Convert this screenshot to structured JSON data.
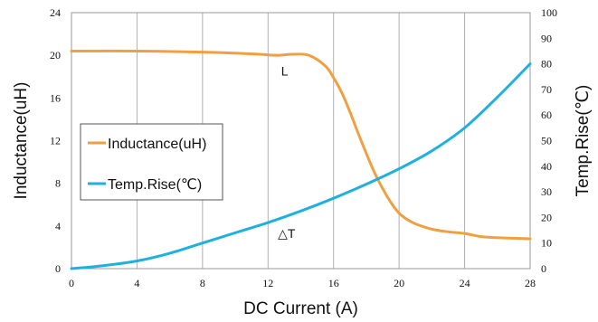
{
  "chart_data": {
    "type": "line",
    "title": "",
    "xlabel": "DC Current (A)",
    "ylabel": "Inductance(uH)",
    "y2label": "Temp.Rise(℃)",
    "xlim": [
      0,
      28
    ],
    "ylim": [
      0,
      24
    ],
    "y2lim": [
      0,
      100
    ],
    "x_ticks": [
      "0",
      "4",
      "8",
      "12",
      "16",
      "20",
      "24",
      "28"
    ],
    "y_ticks": [
      "0",
      "4",
      "8",
      "12",
      "16",
      "20",
      "24"
    ],
    "y2_ticks": [
      "0",
      "10",
      "20",
      "30",
      "40",
      "50",
      "60",
      "70",
      "80",
      "90",
      "100"
    ],
    "grid": true,
    "grid_axis": "x",
    "legend_position": "center-left",
    "series": [
      {
        "name": "Inductance(uH)",
        "axis": "left",
        "color": "#f0a040",
        "x": [
          0,
          4,
          8,
          10,
          11.5,
          12.5,
          13.5,
          14.5,
          15.5,
          16,
          16.5,
          17,
          17.5,
          18,
          18.5,
          19,
          19.5,
          20,
          20.5,
          21,
          22,
          23,
          24,
          25,
          26,
          27,
          28
        ],
        "y": [
          20.4,
          20.4,
          20.3,
          20.2,
          20.1,
          20.0,
          20.1,
          20.0,
          19.0,
          17.9,
          16.5,
          14.7,
          12.7,
          10.8,
          9.0,
          7.5,
          6.2,
          5.2,
          4.6,
          4.2,
          3.7,
          3.45,
          3.3,
          3.0,
          2.9,
          2.85,
          2.8
        ]
      },
      {
        "name": "Temp.Rise(℃)",
        "axis": "right",
        "color": "#20b0e0",
        "x": [
          0,
          2,
          4,
          6,
          8,
          10,
          12,
          14,
          16,
          18,
          20,
          22,
          24,
          26,
          28
        ],
        "y": [
          0,
          1.2,
          3,
          6,
          10,
          14,
          18,
          22.5,
          27.5,
          33,
          39,
          46,
          55,
          67,
          80
        ]
      }
    ],
    "annotations": [
      {
        "text": "L",
        "x": 12.8,
        "y_right": 75.5
      },
      {
        "text": "△T",
        "x": 12.6,
        "y_right": 12
      }
    ]
  }
}
